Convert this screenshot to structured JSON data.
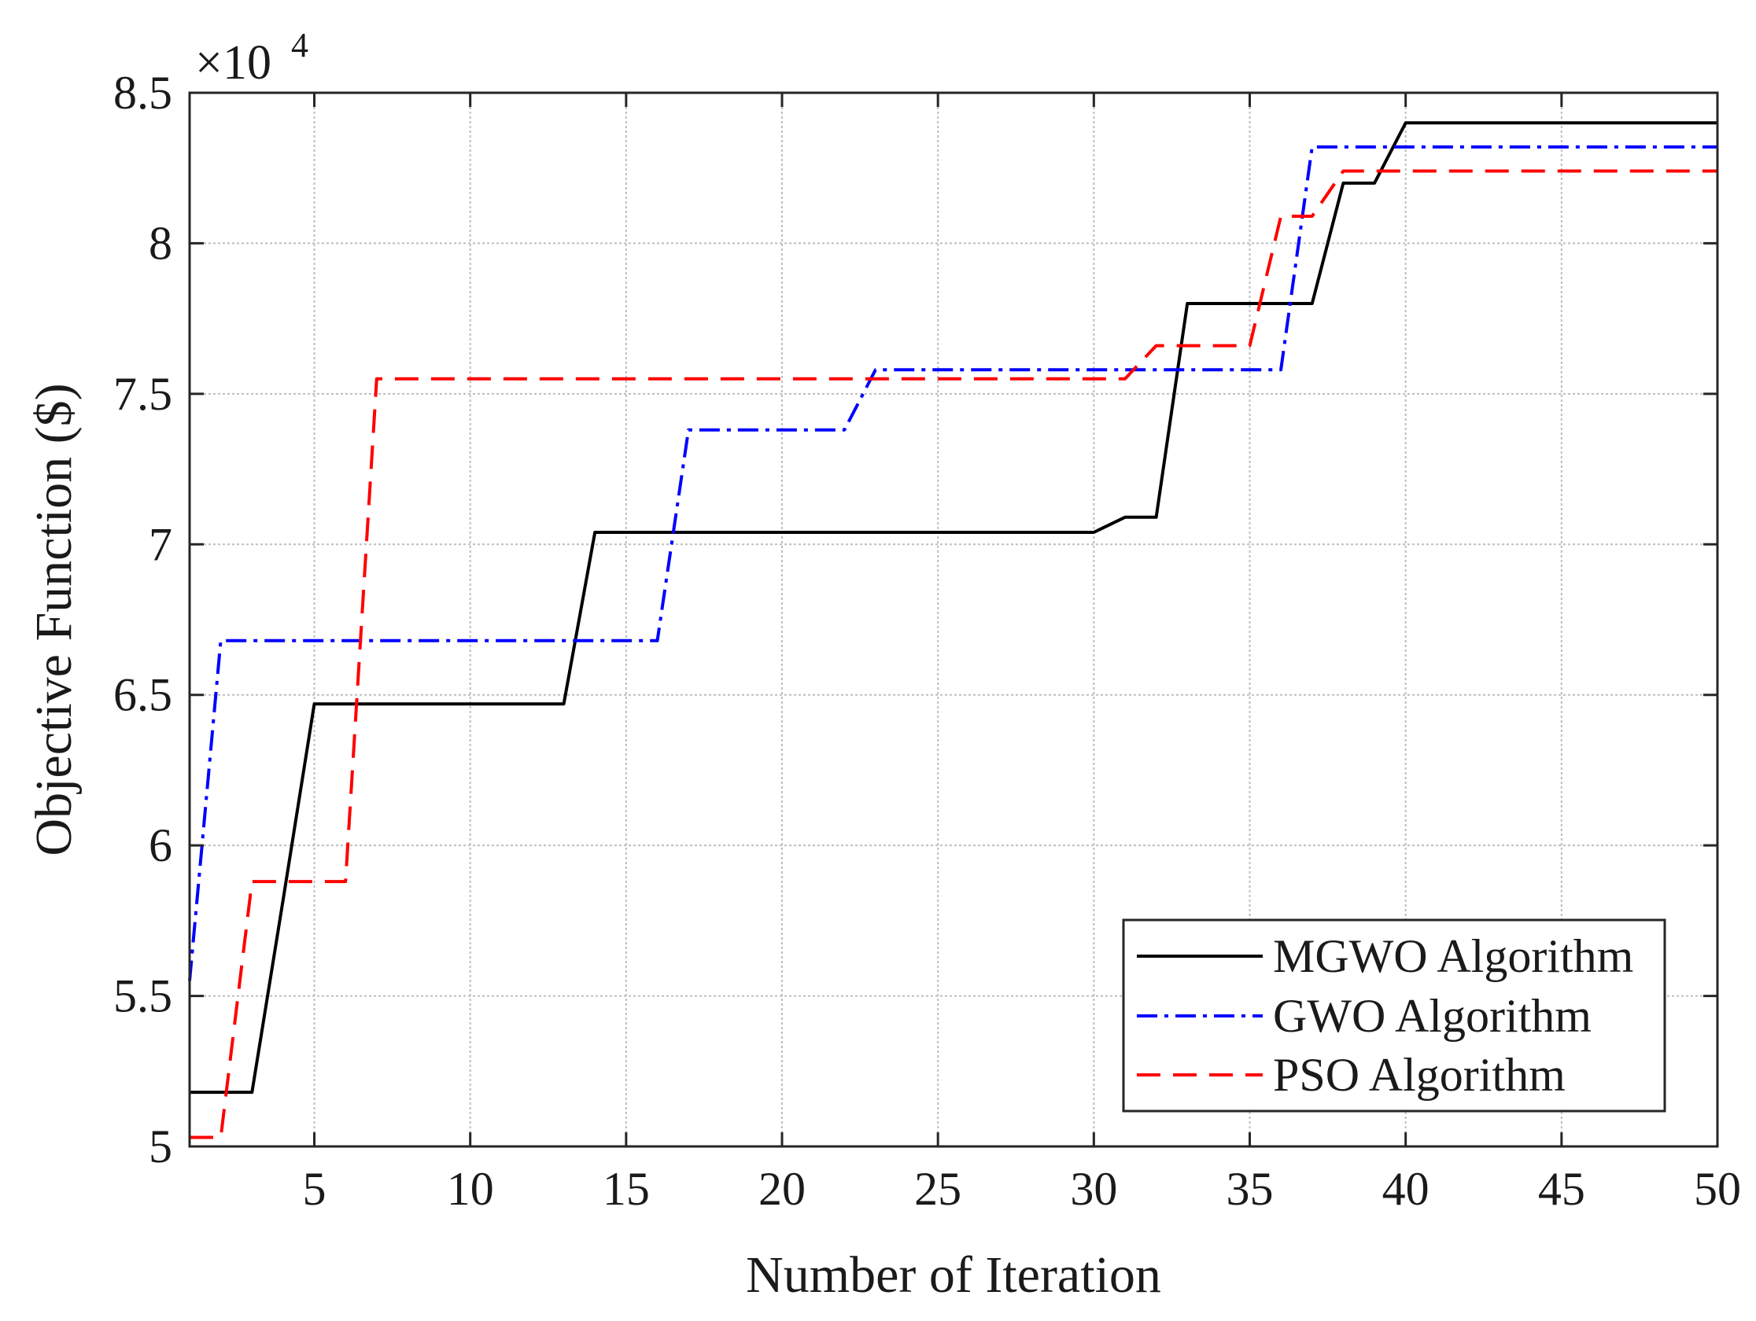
{
  "chart_data": {
    "type": "line",
    "title": "",
    "xlabel": "Number of Iteration",
    "ylabel": "Objective Function ($)",
    "y_multiplier": {
      "base": "×10",
      "exponent": "4"
    },
    "xlim": [
      1,
      50
    ],
    "ylim": [
      5,
      8.5
    ],
    "xticks": [
      5,
      10,
      15,
      20,
      25,
      30,
      35,
      40,
      45,
      50
    ],
    "yticks": [
      5,
      5.5,
      6,
      6.5,
      7,
      7.5,
      8,
      8.5
    ],
    "ytick_labels": [
      "5",
      "5.5",
      "6",
      "6.5",
      "7",
      "7.5",
      "8",
      "8.5"
    ],
    "grid": true,
    "legend_position": "bottom-right",
    "x": [
      1,
      2,
      3,
      4,
      5,
      6,
      7,
      8,
      9,
      10,
      11,
      12,
      13,
      14,
      15,
      16,
      17,
      18,
      19,
      20,
      21,
      22,
      23,
      24,
      25,
      26,
      27,
      28,
      29,
      30,
      31,
      32,
      33,
      34,
      35,
      36,
      37,
      38,
      39,
      40,
      41,
      42,
      43,
      44,
      45,
      46,
      47,
      48,
      49,
      50
    ],
    "series": [
      {
        "name": "MGWO Algorithm",
        "color": "#000000",
        "style": "solid",
        "values": [
          5.18,
          5.18,
          5.18,
          5.82,
          6.47,
          6.47,
          6.47,
          6.47,
          6.47,
          6.47,
          6.47,
          6.47,
          6.47,
          7.04,
          7.04,
          7.04,
          7.04,
          7.04,
          7.04,
          7.04,
          7.04,
          7.04,
          7.04,
          7.04,
          7.04,
          7.04,
          7.04,
          7.04,
          7.04,
          7.04,
          7.09,
          7.09,
          7.8,
          7.8,
          7.8,
          7.8,
          7.8,
          8.2,
          8.2,
          8.4,
          8.4,
          8.4,
          8.4,
          8.4,
          8.4,
          8.4,
          8.4,
          8.4,
          8.4,
          8.4
        ]
      },
      {
        "name": "GWO Algorithm",
        "color": "#0000ff",
        "style": "dashdot",
        "values": [
          5.55,
          6.68,
          6.68,
          6.68,
          6.68,
          6.68,
          6.68,
          6.68,
          6.68,
          6.68,
          6.68,
          6.68,
          6.68,
          6.68,
          6.68,
          6.68,
          7.38,
          7.38,
          7.38,
          7.38,
          7.38,
          7.38,
          7.58,
          7.58,
          7.58,
          7.58,
          7.58,
          7.58,
          7.58,
          7.58,
          7.58,
          7.58,
          7.58,
          7.58,
          7.58,
          7.58,
          8.32,
          8.32,
          8.32,
          8.32,
          8.32,
          8.32,
          8.32,
          8.32,
          8.32,
          8.32,
          8.32,
          8.32,
          8.32,
          8.32
        ]
      },
      {
        "name": "PSO Algorithm",
        "color": "#ff0000",
        "style": "dashed",
        "values": [
          5.03,
          5.03,
          5.88,
          5.88,
          5.88,
          5.88,
          7.55,
          7.55,
          7.55,
          7.55,
          7.55,
          7.55,
          7.55,
          7.55,
          7.55,
          7.55,
          7.55,
          7.55,
          7.55,
          7.55,
          7.55,
          7.55,
          7.55,
          7.55,
          7.55,
          7.55,
          7.55,
          7.55,
          7.55,
          7.55,
          7.55,
          7.66,
          7.66,
          7.66,
          7.66,
          8.09,
          8.09,
          8.24,
          8.24,
          8.24,
          8.24,
          8.24,
          8.24,
          8.24,
          8.24,
          8.24,
          8.24,
          8.24,
          8.24,
          8.24
        ]
      }
    ]
  }
}
